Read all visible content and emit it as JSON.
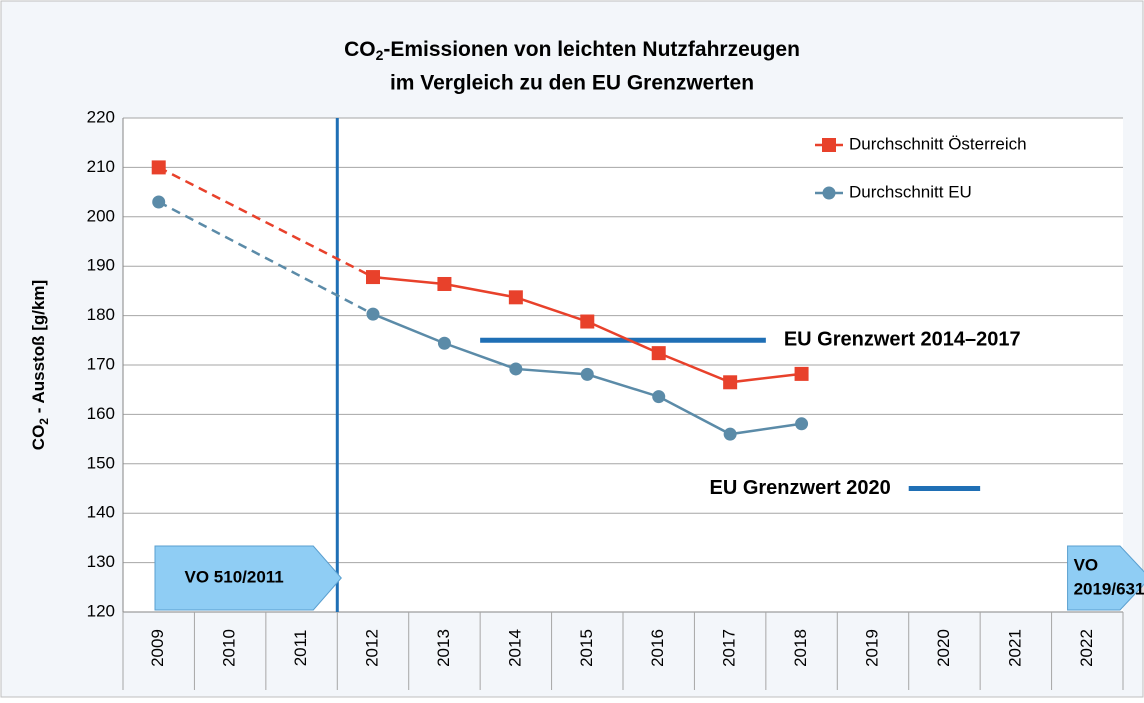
{
  "chart_data": {
    "type": "line",
    "title": [
      [
        "CO",
        "2",
        "-Emissionen von leichten Nutzfahrzeugen"
      ],
      [
        "im Vergleich zu den EU Grenzwerten"
      ]
    ],
    "ylabel": [
      "CO",
      "2",
      " - Ausstoß [g/km]"
    ],
    "categories": [
      "2009",
      "2010",
      "2011",
      "2012",
      "2013",
      "2014",
      "2015",
      "2016",
      "2017",
      "2018",
      "2019",
      "2020",
      "2021",
      "2022"
    ],
    "series": [
      {
        "name": "Durchschnitt Österreich",
        "color": "#e8412b",
        "marker": "square",
        "values": [
          210,
          null,
          null,
          187.8,
          186.4,
          183.7,
          178.8,
          172.4,
          166.5,
          168.2,
          null,
          null,
          null,
          null
        ]
      },
      {
        "name": "Durchschnitt EU",
        "color": "#5b8ba8",
        "marker": "circle",
        "values": [
          203,
          null,
          null,
          180.3,
          174.4,
          169.2,
          168.1,
          163.6,
          156,
          158.1,
          null,
          null,
          null,
          null
        ]
      }
    ],
    "dashed_gaps": true,
    "ylim": [
      120,
      220
    ],
    "yticks": [
      120,
      130,
      140,
      150,
      160,
      170,
      180,
      190,
      200,
      210,
      220
    ],
    "grid": true,
    "legend": "top-right",
    "limits": [
      {
        "label": "EU Grenzwert 2014–2017",
        "value": 175,
        "from": 2013.5,
        "to": 2017.5,
        "color": "#1f6fb5",
        "label_side": "right"
      },
      {
        "label": "EU Grenzwert 2020",
        "value": 145,
        "from": 2019.5,
        "to": 2020.5,
        "color": "#1f6fb5",
        "label_side": "left"
      }
    ],
    "regulations": [
      {
        "label": [
          "VO 510/2011"
        ],
        "x": 2011.5,
        "line": true
      },
      {
        "label": [
          "VO",
          "2019/631"
        ],
        "x": 2021.5,
        "line": false
      }
    ]
  }
}
